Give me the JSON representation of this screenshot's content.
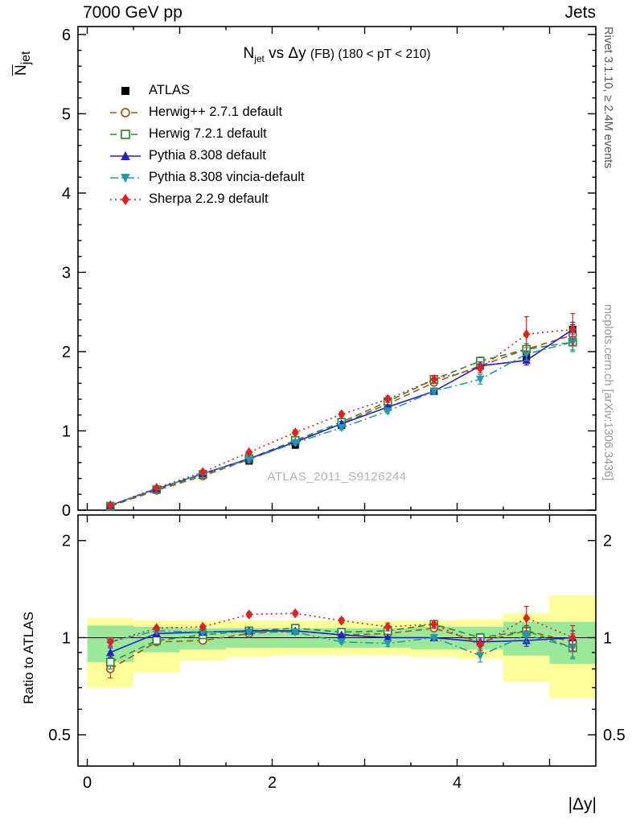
{
  "header": {
    "left": "7000 GeV pp",
    "right": "Jets"
  },
  "side_notes": {
    "rivet": "Rivet 3.1.10, ≥ 2.4M events",
    "mcplots": "mcplots.cern.ch [arXiv:1306.3436]"
  },
  "chart_data": {
    "type": "line",
    "title": "Njet vs Δy (FB) (180 < pT < 210)",
    "title_parts": {
      "base": "N",
      "base_sub": "jet",
      "mid": " vs Δy ",
      "small": "(FB) (180 < pT < 210)"
    },
    "watermark": "ATLAS_2011_S9126244",
    "axes": {
      "x": {
        "label": "|Δy|",
        "min": -0.1,
        "max": 5.5,
        "ticks": [
          0,
          2,
          4
        ]
      },
      "y_top": {
        "label_base": "N",
        "label_sub": "jet",
        "min": 0,
        "max": 6.1,
        "ticks": [
          0,
          1,
          2,
          3,
          4,
          5,
          6
        ]
      },
      "y_ratio": {
        "label": "Ratio to ATLAS",
        "scale": "log",
        "min": 0.4,
        "max": 2.4,
        "ticks": [
          0.5,
          1,
          2
        ],
        "minor_ticks": [
          0.6,
          0.7,
          0.8,
          0.9
        ]
      }
    },
    "x": [
      0.25,
      0.75,
      1.25,
      1.75,
      2.25,
      2.75,
      3.25,
      3.75,
      4.25,
      4.75,
      5.25
    ],
    "bin_edges": [
      0,
      0.5,
      1,
      1.5,
      2,
      2.5,
      3,
      3.5,
      4,
      4.5,
      5,
      5.5
    ],
    "bands": {
      "yellow": {
        "color": "#ffff99",
        "lo": [
          0.7,
          0.78,
          0.85,
          0.87,
          0.88,
          0.88,
          0.88,
          0.87,
          0.86,
          0.73,
          0.65
        ],
        "hi": [
          1.15,
          1.13,
          1.13,
          1.13,
          1.13,
          1.13,
          1.13,
          1.13,
          1.14,
          1.19,
          1.35
        ]
      },
      "green": {
        "color": "#9be89b",
        "lo": [
          0.84,
          0.9,
          0.92,
          0.93,
          0.93,
          0.93,
          0.93,
          0.92,
          0.92,
          0.88,
          0.83
        ],
        "hi": [
          1.09,
          1.08,
          1.07,
          1.07,
          1.07,
          1.07,
          1.07,
          1.08,
          1.08,
          1.12,
          1.12
        ]
      }
    },
    "series": [
      {
        "id": "atlas",
        "label": "ATLAS",
        "color": "#000000",
        "marker": "square-filled",
        "line": "none",
        "values": [
          0.06,
          0.26,
          0.44,
          0.62,
          0.82,
          1.07,
          1.3,
          1.5,
          1.88,
          1.93,
          2.28
        ],
        "errors": [
          0.01,
          0.01,
          0.01,
          0.02,
          0.02,
          0.02,
          0.03,
          0.03,
          0.05,
          0.05,
          0.06
        ]
      },
      {
        "id": "herwigpp",
        "label": "Herwig++ 2.7.1 default",
        "color": "#aa5511",
        "marker": "circle-open",
        "line": "dashed",
        "values": [
          0.05,
          0.25,
          0.43,
          0.64,
          0.86,
          1.09,
          1.34,
          1.61,
          1.82,
          2.03,
          2.21
        ],
        "errors": [
          0.01,
          0.01,
          0.01,
          0.02,
          0.02,
          0.03,
          0.03,
          0.04,
          0.05,
          0.07,
          0.1
        ],
        "ratio": [
          0.8,
          0.97,
          0.98,
          1.03,
          1.05,
          1.02,
          1.03,
          1.07,
          0.97,
          1.05,
          0.97
        ],
        "ratio_errors": [
          0.05,
          0.01,
          0.01,
          0.01,
          0.01,
          0.01,
          0.02,
          0.02,
          0.03,
          0.04,
          0.06
        ]
      },
      {
        "id": "herwig7",
        "label": "Herwig 7.2.1 default",
        "color": "#2e8b2e",
        "marker": "square-open",
        "line": "dashed",
        "values": [
          0.05,
          0.26,
          0.45,
          0.65,
          0.88,
          1.11,
          1.37,
          1.65,
          1.88,
          2.03,
          2.12
        ],
        "errors": [
          0.01,
          0.01,
          0.01,
          0.02,
          0.02,
          0.03,
          0.03,
          0.04,
          0.05,
          0.07,
          0.1
        ],
        "ratio": [
          0.84,
          0.98,
          1.02,
          1.05,
          1.07,
          1.04,
          1.05,
          1.1,
          1.0,
          1.05,
          0.93
        ],
        "ratio_errors": [
          0.04,
          0.01,
          0.01,
          0.01,
          0.01,
          0.01,
          0.02,
          0.02,
          0.03,
          0.04,
          0.06
        ]
      },
      {
        "id": "pythia",
        "label": "Pythia 8.308 default",
        "color": "#2222cc",
        "marker": "triangle-up-filled",
        "line": "solid",
        "values": [
          0.06,
          0.27,
          0.46,
          0.65,
          0.86,
          1.09,
          1.3,
          1.5,
          1.82,
          1.89,
          2.28
        ],
        "errors": [
          0.01,
          0.01,
          0.01,
          0.02,
          0.02,
          0.03,
          0.03,
          0.04,
          0.05,
          0.06,
          0.09
        ],
        "ratio": [
          0.9,
          1.03,
          1.04,
          1.05,
          1.05,
          1.02,
          1.0,
          1.0,
          0.97,
          0.98,
          1.0
        ],
        "ratio_errors": [
          0.03,
          0.01,
          0.01,
          0.01,
          0.01,
          0.01,
          0.01,
          0.02,
          0.03,
          0.04,
          0.05
        ]
      },
      {
        "id": "vincia",
        "label": "Pythia 8.308 vincia-default",
        "color": "#2299aa",
        "marker": "triangle-down-filled",
        "line": "dashdot",
        "values": [
          0.06,
          0.27,
          0.46,
          0.64,
          0.85,
          1.04,
          1.25,
          1.5,
          1.65,
          1.97,
          2.12
        ],
        "errors": [
          0.01,
          0.01,
          0.01,
          0.02,
          0.02,
          0.03,
          0.03,
          0.04,
          0.06,
          0.08,
          0.12
        ],
        "ratio": [
          0.97,
          1.05,
          1.04,
          1.04,
          1.04,
          0.97,
          0.96,
          1.0,
          0.88,
          1.02,
          0.93
        ],
        "ratio_errors": [
          0.03,
          0.01,
          0.01,
          0.01,
          0.01,
          0.01,
          0.02,
          0.02,
          0.04,
          0.05,
          0.07
        ]
      },
      {
        "id": "sherpa",
        "label": "Sherpa 2.2.9 default",
        "color": "#dd2222",
        "marker": "diamond-filled",
        "line": "dotted",
        "values": [
          0.06,
          0.28,
          0.48,
          0.73,
          0.98,
          1.21,
          1.4,
          1.65,
          1.79,
          2.22,
          2.28
        ],
        "errors": [
          0.01,
          0.01,
          0.02,
          0.02,
          0.03,
          0.03,
          0.04,
          0.05,
          0.06,
          0.22,
          0.2
        ],
        "ratio": [
          0.97,
          1.07,
          1.08,
          1.18,
          1.19,
          1.13,
          1.08,
          1.1,
          0.95,
          1.15,
          1.0
        ],
        "ratio_errors": [
          0.03,
          0.01,
          0.01,
          0.02,
          0.02,
          0.02,
          0.03,
          0.03,
          0.04,
          0.1,
          0.09
        ]
      }
    ]
  }
}
